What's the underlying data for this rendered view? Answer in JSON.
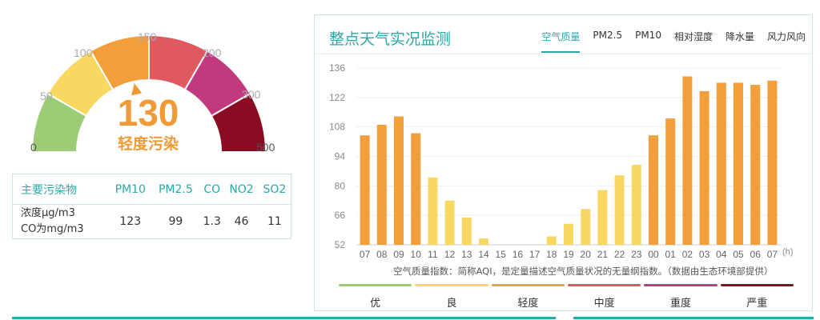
{
  "gauge": {
    "value": "130",
    "level": "轻度污染",
    "ticks": [
      "0",
      "50",
      "100",
      "150",
      "200",
      "300",
      "500"
    ],
    "segment_colors": [
      "#9ccc76",
      "#f8d860",
      "#f29e3a",
      "#de5a5e",
      "#c23a7e",
      "#8b0c22"
    ],
    "value_color": "#f09a37"
  },
  "pollutants": {
    "header": [
      "主要污染物",
      "PM10",
      "PM2.5",
      "CO",
      "NO2",
      "SO2"
    ],
    "unit_line1": "浓度μg/m3",
    "unit_line2": "CO为mg/m3",
    "values": [
      "123",
      "99",
      "1.3",
      "46",
      "11"
    ]
  },
  "panel": {
    "title": "整点天气实况监测",
    "tabs": [
      "空气质量",
      "PM2.5",
      "PM10",
      "相对湿度",
      "降水量",
      "风力风向"
    ],
    "active_tab": "空气质量",
    "note": "空气质量指数：简称AQI，是定量描述空气质量状况的无量纲指数。（数据由生态环境部提供）"
  },
  "legend": [
    {
      "label": "优",
      "color": "#9ccc76"
    },
    {
      "label": "良",
      "color": "#f8d860"
    },
    {
      "label": "轻度",
      "color": "#f29e3a"
    },
    {
      "label": "中度",
      "color": "#de5a5e"
    },
    {
      "label": "重度",
      "color": "#c23a7e"
    },
    {
      "label": "严重",
      "color": "#8b0c22"
    }
  ],
  "chart_data": {
    "type": "bar",
    "title": "",
    "xlabel": "",
    "ylabel": "",
    "x_unit": "(h)",
    "categories": [
      "07",
      "08",
      "09",
      "10",
      "11",
      "12",
      "13",
      "14",
      "15",
      "16",
      "17",
      "18",
      "19",
      "20",
      "21",
      "22",
      "23",
      "00",
      "01",
      "02",
      "03",
      "04",
      "05",
      "06",
      "07"
    ],
    "values": [
      104,
      109,
      113,
      105,
      84,
      73,
      65,
      55,
      null,
      null,
      null,
      56,
      62,
      69,
      78,
      85,
      90,
      104,
      112,
      132,
      125,
      129,
      129,
      128,
      130
    ],
    "y_ticks": [
      52,
      66,
      80,
      94,
      108,
      122,
      136
    ],
    "ylim": [
      52,
      136
    ],
    "grid": true,
    "color_rule": {
      "good_max": 100,
      "good_color": "#f8d860",
      "light_color": "#f29e3a"
    }
  }
}
